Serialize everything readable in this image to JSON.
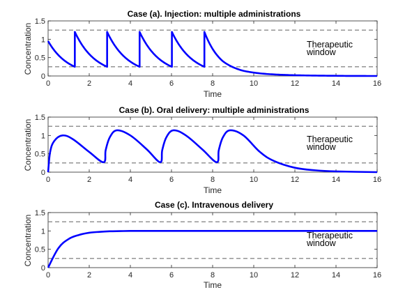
{
  "chart_data": [
    {
      "type": "line",
      "title": "Case (a). Injection: multiple administrations",
      "xlabel": "Time",
      "ylabel": "Concentration",
      "xlim": [
        0,
        16
      ],
      "ylim": [
        0,
        1.5
      ],
      "xticks": [
        "0",
        "2",
        "4",
        "6",
        "8",
        "10",
        "12",
        "14",
        "16"
      ],
      "yticks": [
        "0",
        "0.5",
        "1",
        "1.5"
      ],
      "annotation": [
        "Therapeutic",
        "window"
      ],
      "window": [
        0.25,
        1.25
      ],
      "line_color": "#0000ff",
      "window_color": "#707070",
      "series": [
        {
          "x": [
            0,
            1.3,
            1.3,
            2.87,
            2.87,
            4.45,
            4.45,
            6.02,
            6.02,
            7.6,
            7.6,
            8.5,
            9.5,
            10.5,
            12,
            14,
            16
          ],
          "y": [
            0.95,
            0.25,
            1.2,
            0.25,
            1.2,
            0.25,
            1.2,
            0.25,
            1.2,
            0.25,
            1.2,
            0.4,
            0.14,
            0.06,
            0.02,
            0.005,
            0.0
          ],
          "curve": "exp"
        }
      ]
    },
    {
      "type": "line",
      "title": "Case (b). Oral delivery: multiple administrations",
      "xlabel": "Time",
      "ylabel": "Concentration",
      "xlim": [
        0,
        16
      ],
      "ylim": [
        0,
        1.5
      ],
      "xticks": [
        "0",
        "2",
        "4",
        "6",
        "8",
        "10",
        "12",
        "14",
        "16"
      ],
      "yticks": [
        "0",
        "0.5",
        "1",
        "1.5"
      ],
      "annotation": [
        "Therapeutic",
        "window"
      ],
      "window": [
        0.25,
        1.25
      ],
      "line_color": "#0000ff",
      "window_color": "#707070",
      "series": [
        {
          "x": [
            0,
            0.1,
            0.3,
            0.7,
            1.2,
            2.0,
            2.7,
            2.8,
            3.0,
            3.35,
            4.0,
            4.8,
            5.45,
            5.55,
            5.75,
            6.1,
            6.7,
            7.5,
            8.2,
            8.3,
            8.5,
            8.85,
            9.5,
            10.3,
            11.0,
            12.0,
            13.0,
            14.0,
            16.0
          ],
          "y": [
            0.0,
            0.55,
            0.85,
            1.0,
            0.9,
            0.55,
            0.27,
            0.6,
            0.95,
            1.14,
            1.0,
            0.62,
            0.27,
            0.6,
            0.95,
            1.14,
            1.0,
            0.62,
            0.27,
            0.6,
            0.95,
            1.14,
            1.0,
            0.55,
            0.3,
            0.12,
            0.05,
            0.02,
            0.0
          ],
          "curve": "smooth"
        }
      ]
    },
    {
      "type": "line",
      "title": "Case (c). Intravenous delivery",
      "xlabel": "Time",
      "ylabel": "Concentration",
      "xlim": [
        0,
        16
      ],
      "ylim": [
        0,
        1.5
      ],
      "xticks": [
        "0",
        "2",
        "4",
        "6",
        "8",
        "10",
        "12",
        "14",
        "16"
      ],
      "yticks": [
        "0",
        "0.5",
        "1",
        "1.5"
      ],
      "annotation": [
        "Therapeutic",
        "window"
      ],
      "window": [
        0.25,
        1.25
      ],
      "line_color": "#0000ff",
      "window_color": "#707070",
      "series": [
        {
          "x": [
            0,
            0.5,
            1.0,
            1.5,
            2.0,
            2.5,
            3.0,
            3.5,
            4.0,
            5.0,
            6.0,
            8.0,
            10.0,
            12.0,
            14.0,
            16.0
          ],
          "y": [
            0.0,
            0.53,
            0.78,
            0.89,
            0.95,
            0.975,
            0.99,
            0.995,
            1.0,
            1.0,
            1.0,
            1.0,
            1.0,
            1.0,
            1.0,
            1.0
          ],
          "curve": "smooth"
        }
      ]
    }
  ]
}
